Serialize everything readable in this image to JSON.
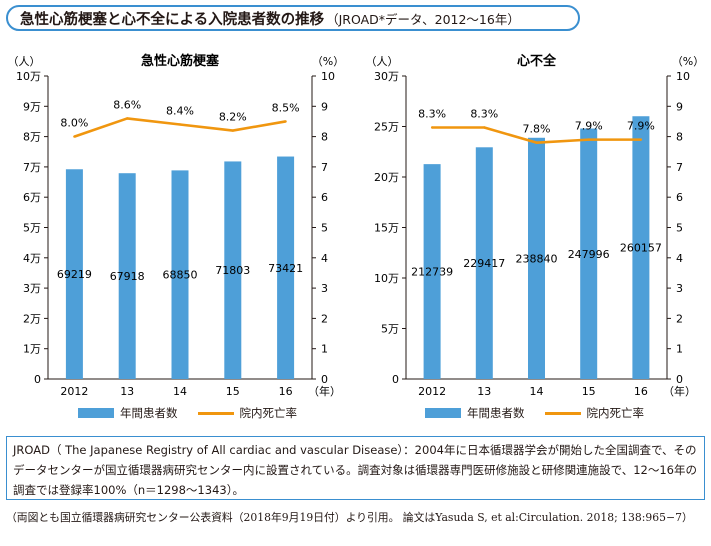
{
  "header": {
    "title": "急性心筋梗塞と心不全による入院患者数の推移",
    "subtitle": "（JROAD*データ、2012〜16年）"
  },
  "colors": {
    "bar": "#4e9fd8",
    "line": "#f0960f",
    "frame": "#3a8fd0"
  },
  "legend": {
    "bar_label": "年間患者数",
    "line_label": "院内死亡率"
  },
  "chart_data": [
    {
      "type": "bar",
      "title": "急性心筋梗塞",
      "categories": [
        "2012",
        "13",
        "14",
        "15",
        "16"
      ],
      "x_unit": "（年）",
      "left_unit": "（人）",
      "right_unit": "（%）",
      "left_ticks": [
        "0",
        "1万",
        "2万",
        "3万",
        "4万",
        "5万",
        "6万",
        "7万",
        "8万",
        "9万",
        "10万"
      ],
      "right_ticks": [
        "0",
        "1",
        "2",
        "3",
        "4",
        "5",
        "6",
        "7",
        "8",
        "9",
        "10"
      ],
      "ylim": [
        0,
        100000
      ],
      "y2lim": [
        0,
        10
      ],
      "series": [
        {
          "name": "年間患者数",
          "kind": "bar",
          "axis": "left",
          "values": [
            69219,
            67918,
            68850,
            71803,
            73421
          ],
          "labels": [
            "69219",
            "67918",
            "68850",
            "71803",
            "73421"
          ]
        },
        {
          "name": "院内死亡率",
          "kind": "line",
          "axis": "right",
          "values": [
            8.0,
            8.6,
            8.4,
            8.2,
            8.5
          ],
          "labels": [
            "8.0%",
            "8.6%",
            "8.4%",
            "8.2%",
            "8.5%"
          ]
        }
      ]
    },
    {
      "type": "bar",
      "title": "心不全",
      "categories": [
        "2012",
        "13",
        "14",
        "15",
        "16"
      ],
      "x_unit": "（年）",
      "left_unit": "（人）",
      "right_unit": "（%）",
      "left_ticks": [
        "0",
        "5万",
        "10万",
        "15万",
        "20万",
        "25万",
        "30万"
      ],
      "right_ticks": [
        "0",
        "1",
        "2",
        "3",
        "4",
        "5",
        "6",
        "7",
        "8",
        "9",
        "10"
      ],
      "ylim": [
        0,
        300000
      ],
      "y2lim": [
        0,
        10
      ],
      "series": [
        {
          "name": "年間患者数",
          "kind": "bar",
          "axis": "left",
          "values": [
            212739,
            229417,
            238840,
            247996,
            260157
          ],
          "labels": [
            "212739",
            "229417",
            "238840",
            "247996",
            "260157"
          ]
        },
        {
          "name": "院内死亡率",
          "kind": "line",
          "axis": "right",
          "values": [
            8.3,
            8.3,
            7.8,
            7.9,
            7.9
          ],
          "labels": [
            "8.3%",
            "8.3%",
            "7.8%",
            "7.9%",
            "7.9%"
          ]
        }
      ]
    }
  ],
  "note": {
    "text": "JROAD（ The Japanese Registry of All cardiac and vascular Disease）：2004年に日本循環器学会が開始した全国調査で、そのデータセンターが国立循環器病研究センター内に設置されている。調査対象は循環器専門医研修施設と研修関連施設で、12〜16年の調査では登録率100%（n＝1298〜1343）。"
  },
  "source": {
    "text": "（両図とも国立循環器病研究センター公表資料（2018年9月19日付）より引用。 論文はYasuda S, et al:Circulation. 2018; 138:965−7）"
  }
}
